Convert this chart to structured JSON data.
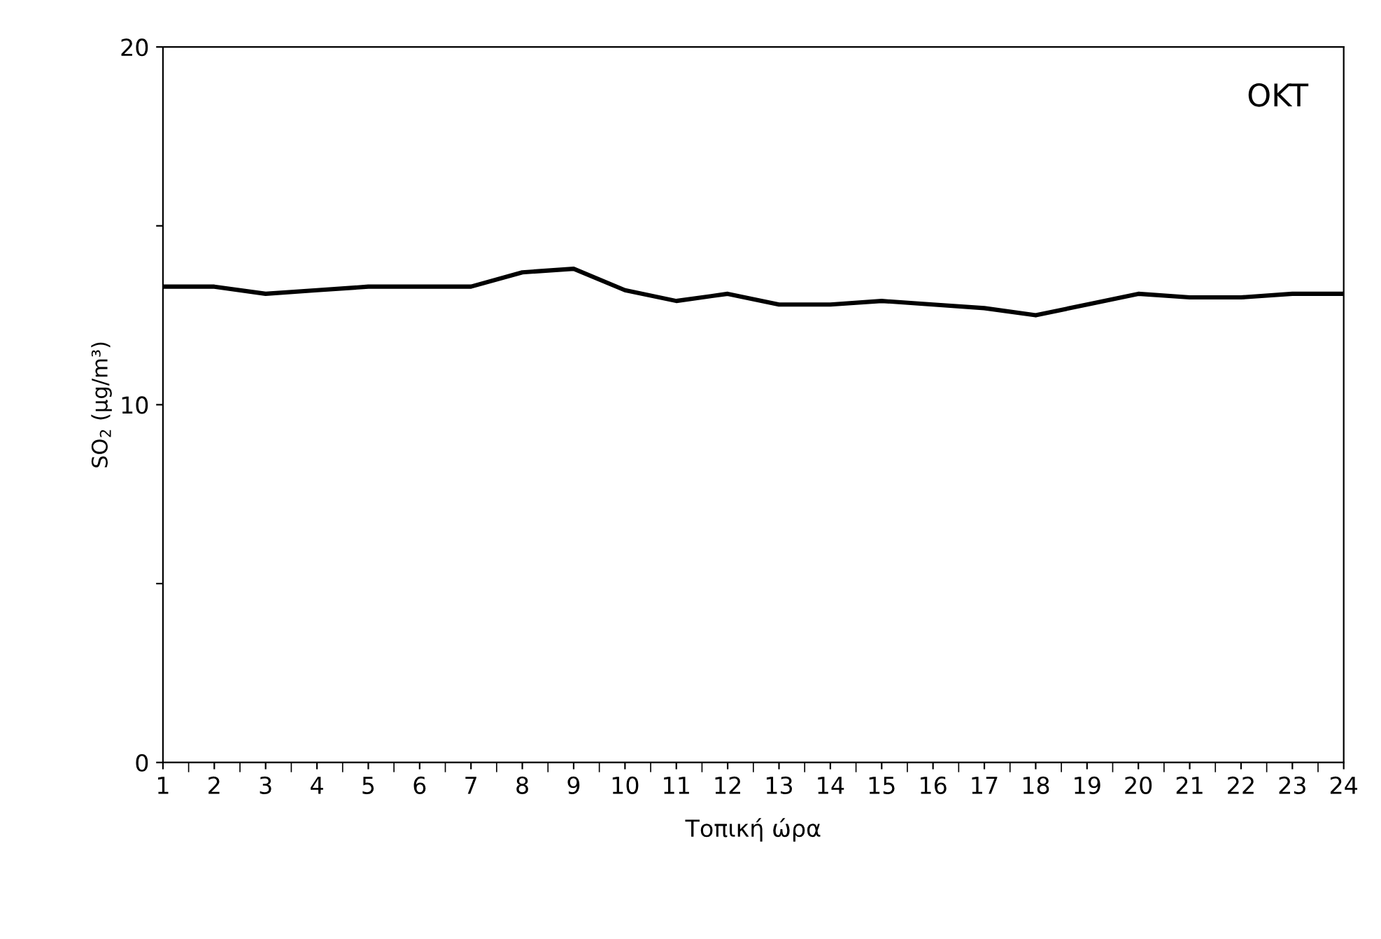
{
  "chart_data": {
    "type": "line",
    "title": "OKT",
    "xlabel": "Τοπική ώρα",
    "ylabel": "SO$_{2}$ (μg/m³)",
    "categories": [
      "1",
      "2",
      "3",
      "4",
      "5",
      "6",
      "7",
      "8",
      "9",
      "10",
      "11",
      "12",
      "13",
      "14",
      "15",
      "16",
      "17",
      "18",
      "19",
      "20",
      "21",
      "22",
      "23",
      "24"
    ],
    "series": [
      {
        "color": "#000000",
        "values": [
          13.3,
          13.3,
          13.1,
          13.2,
          13.3,
          13.3,
          13.3,
          13.7,
          13.8,
          13.2,
          12.9,
          13.1,
          12.8,
          12.8,
          12.9,
          12.8,
          12.7,
          12.5,
          12.8,
          13.1,
          13.0,
          13.0,
          13.1,
          13.1
        ]
      }
    ],
    "ylim": [
      0,
      20
    ],
    "yticks": [
      0,
      {
        "value": 5,
        "label": null
      },
      10,
      {
        "value": 15,
        "label": null
      },
      20
    ],
    "grid": false,
    "marker": "none",
    "line_style": "solid"
  }
}
